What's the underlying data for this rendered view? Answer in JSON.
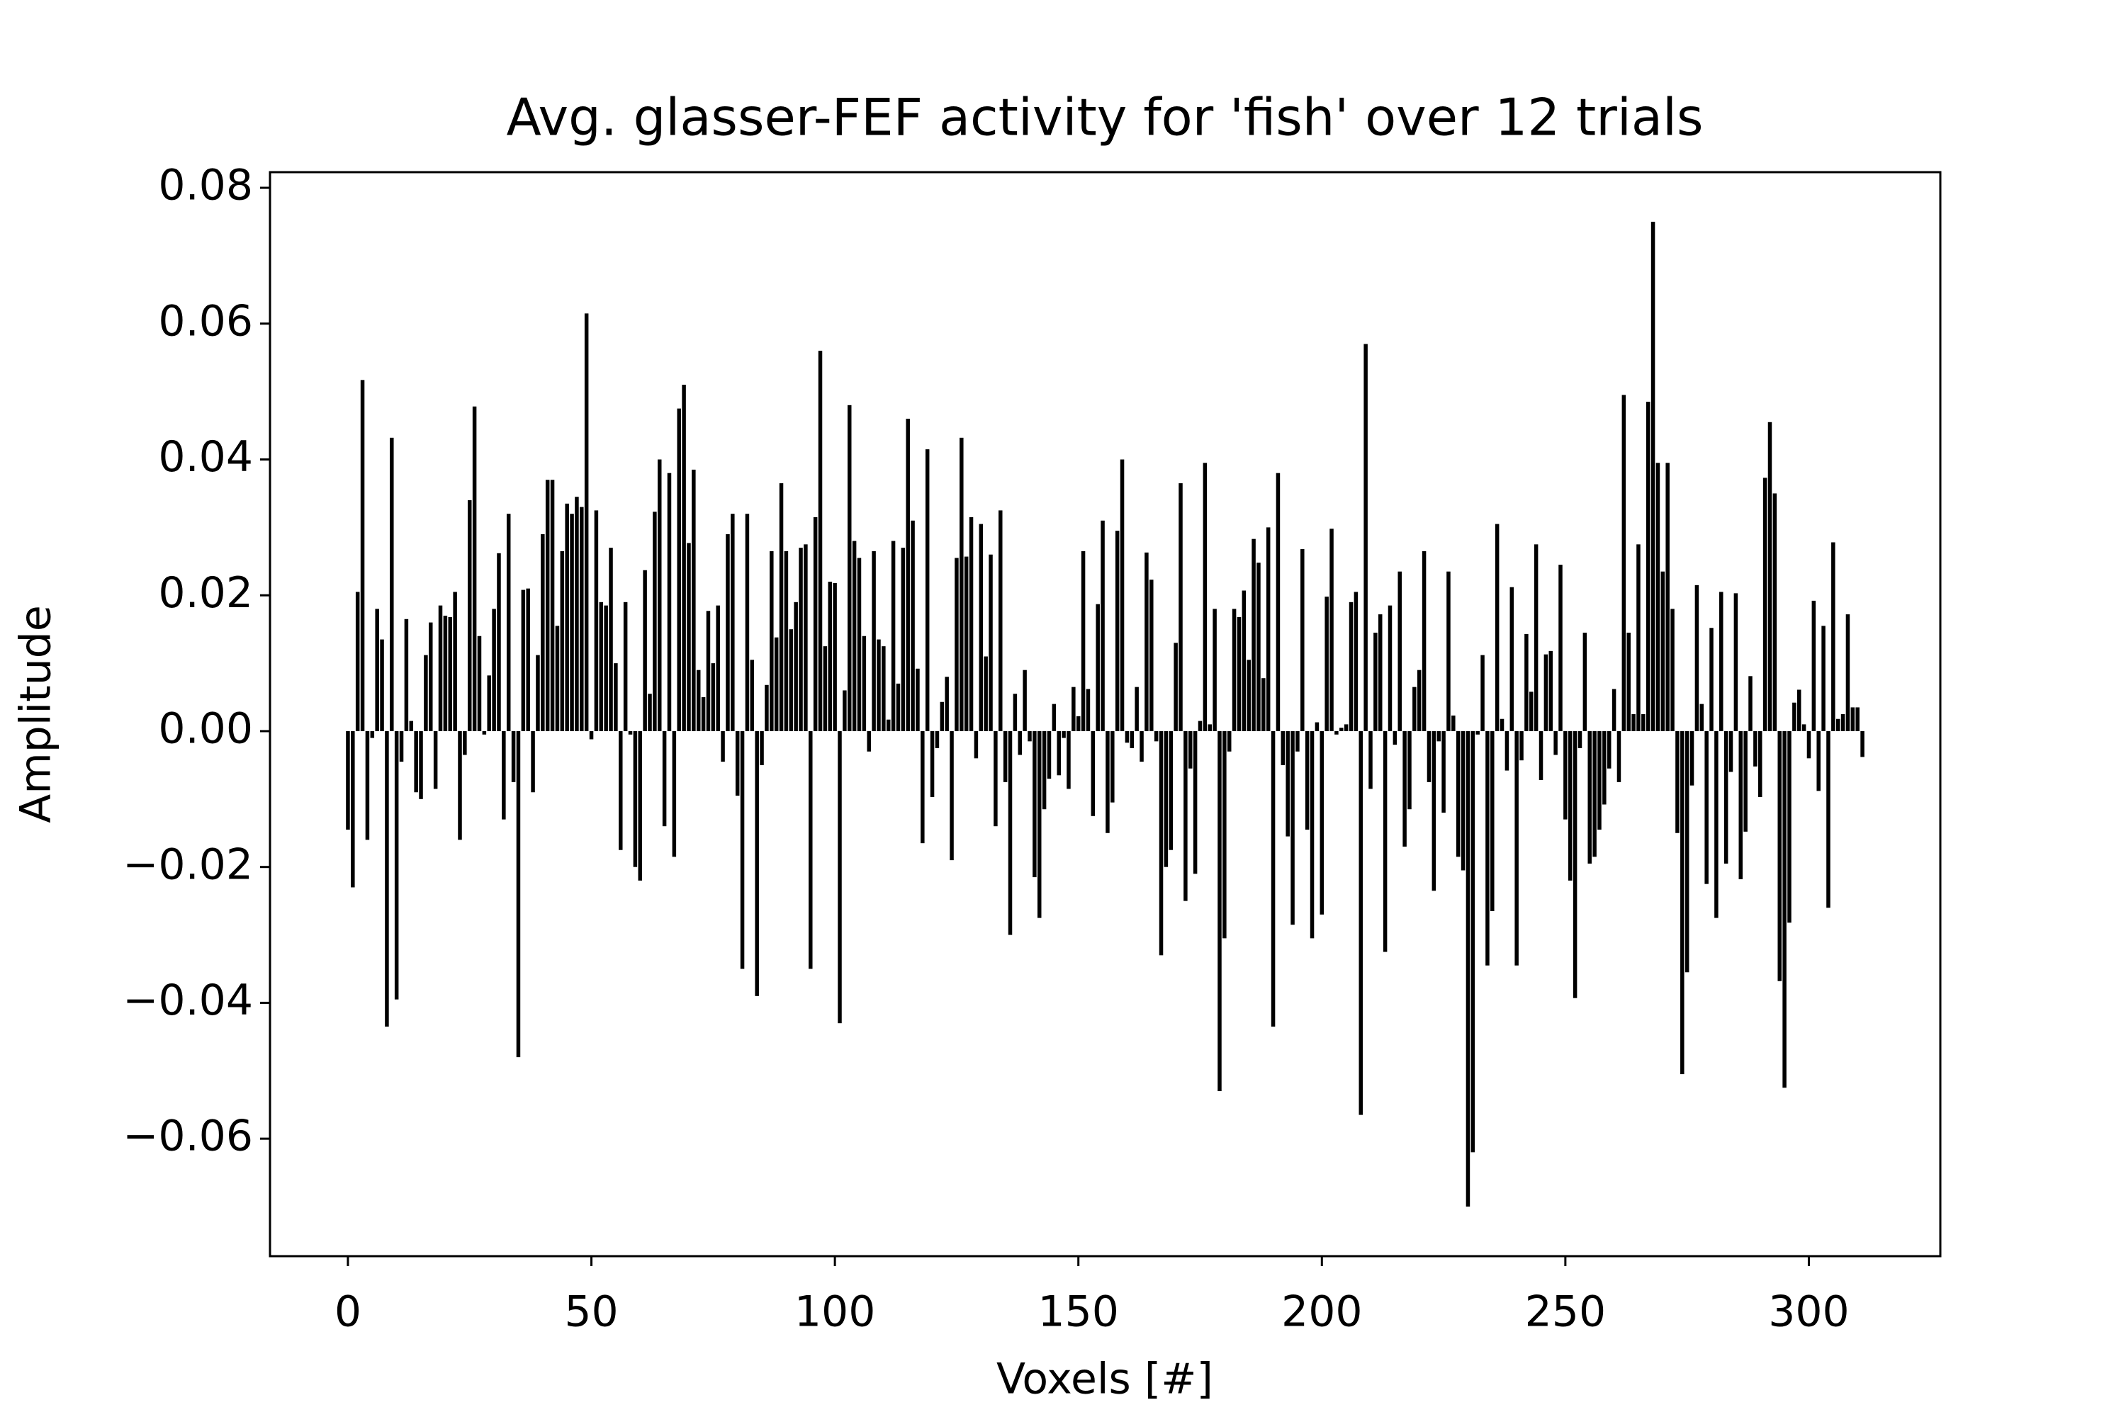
{
  "chart_data": {
    "type": "bar",
    "title": "Avg. glasser-FEF activity for 'fish' over 12 trials",
    "x_label": "Voxels [#]",
    "y_label": "Amplitude",
    "color": "#000000",
    "xlim": [
      -16.0,
      327.0
    ],
    "ylim": [
      -0.0773,
      0.0823
    ],
    "xticks": [
      0,
      50,
      100,
      150,
      200,
      250,
      300
    ],
    "yticks": [
      {
        "value": -0.06,
        "label": "−0.06"
      },
      {
        "value": -0.04,
        "label": "−0.04"
      },
      {
        "value": -0.02,
        "label": "−0.02"
      },
      {
        "value": 0,
        "label": "0.00"
      },
      {
        "value": 0.02,
        "label": "0.02"
      },
      {
        "value": 0.04,
        "label": "0.04"
      },
      {
        "value": 0.06,
        "label": "0.06"
      },
      {
        "value": 0.08,
        "label": "0.08"
      }
    ],
    "x": [
      0,
      1,
      2,
      3,
      4,
      5,
      6,
      7,
      8,
      9,
      10,
      11,
      12,
      13,
      14,
      15,
      16,
      17,
      18,
      19,
      20,
      21,
      22,
      23,
      24,
      25,
      26,
      27,
      28,
      29,
      30,
      31,
      32,
      33,
      34,
      35,
      36,
      37,
      38,
      39,
      40,
      41,
      42,
      43,
      44,
      45,
      46,
      47,
      48,
      49,
      50,
      51,
      52,
      53,
      54,
      55,
      56,
      57,
      58,
      59,
      60,
      61,
      62,
      63,
      64,
      65,
      66,
      67,
      68,
      69,
      70,
      71,
      72,
      73,
      74,
      75,
      76,
      77,
      78,
      79,
      80,
      81,
      82,
      83,
      84,
      85,
      86,
      87,
      88,
      89,
      90,
      91,
      92,
      93,
      94,
      95,
      96,
      97,
      98,
      99,
      100,
      101,
      102,
      103,
      104,
      105,
      106,
      107,
      108,
      109,
      110,
      111,
      112,
      113,
      114,
      115,
      116,
      117,
      118,
      119,
      120,
      121,
      122,
      123,
      124,
      125,
      126,
      127,
      128,
      129,
      130,
      131,
      132,
      133,
      134,
      135,
      136,
      137,
      138,
      139,
      140,
      141,
      142,
      143,
      144,
      145,
      146,
      147,
      148,
      149,
      150,
      151,
      152,
      153,
      154,
      155,
      156,
      157,
      158,
      159,
      160,
      161,
      162,
      163,
      164,
      165,
      166,
      167,
      168,
      169,
      170,
      171,
      172,
      173,
      174,
      175,
      176,
      177,
      178,
      179,
      180,
      181,
      182,
      183,
      184,
      185,
      186,
      187,
      188,
      189,
      190,
      191,
      192,
      193,
      194,
      195,
      196,
      197,
      198,
      199,
      200,
      201,
      202,
      203,
      204,
      205,
      206,
      207,
      208,
      209,
      210,
      211,
      212,
      213,
      214,
      215,
      216,
      217,
      218,
      219,
      220,
      221,
      222,
      223,
      224,
      225,
      226,
      227,
      228,
      229,
      230,
      231,
      232,
      233,
      234,
      235,
      236,
      237,
      238,
      239,
      240,
      241,
      242,
      243,
      244,
      245,
      246,
      247,
      248,
      249,
      250,
      251,
      252,
      253,
      254,
      255,
      256,
      257,
      258,
      259,
      260,
      261,
      262,
      263,
      264,
      265,
      266,
      267,
      268,
      269,
      270,
      271,
      272,
      273,
      274,
      275,
      276,
      277,
      278,
      279,
      280,
      281,
      282,
      283,
      284,
      285,
      286,
      287,
      288,
      289,
      290,
      291,
      292,
      293,
      294,
      295,
      296,
      297,
      298,
      299,
      300,
      301,
      302,
      303,
      304,
      305,
      306,
      307,
      308,
      309,
      310,
      311
    ],
    "values": [
      -0.0145,
      -0.023,
      0.0205,
      0.0517,
      -0.016,
      -0.001,
      0.018,
      0.0135,
      -0.0435,
      0.0432,
      -0.0395,
      -0.0045,
      0.0165,
      0.0015,
      -0.009,
      -0.01,
      0.0112,
      0.016,
      -0.0085,
      0.0185,
      0.017,
      0.0168,
      0.0205,
      -0.016,
      -0.0035,
      0.034,
      0.0478,
      0.014,
      -0.0005,
      0.0082,
      0.018,
      0.0262,
      -0.013,
      0.032,
      -0.0075,
      -0.048,
      0.0208,
      0.021,
      -0.009,
      0.0112,
      0.029,
      0.037,
      0.037,
      0.0155,
      0.0265,
      0.0335,
      0.032,
      0.0345,
      0.033,
      0.0615,
      -0.0012,
      0.0325,
      0.019,
      0.0185,
      0.027,
      0.01,
      -0.0175,
      0.019,
      -0.0005,
      -0.02,
      -0.022,
      0.0237,
      0.0055,
      0.0323,
      0.04,
      -0.014,
      0.038,
      -0.0185,
      0.0475,
      0.051,
      0.0277,
      0.0385,
      0.009,
      0.005,
      0.0177,
      0.01,
      0.0185,
      -0.0045,
      0.029,
      0.032,
      -0.0095,
      -0.035,
      0.032,
      0.0105,
      -0.039,
      -0.005,
      0.0068,
      0.0265,
      0.0138,
      0.0365,
      0.0265,
      0.015,
      0.019,
      0.027,
      0.0275,
      -0.035,
      0.0315,
      0.056,
      0.0125,
      0.022,
      0.0218,
      -0.043,
      0.006,
      0.048,
      0.028,
      0.0255,
      0.014,
      -0.003,
      0.0265,
      0.0135,
      0.0125,
      0.0017,
      0.028,
      0.007,
      0.027,
      0.046,
      0.031,
      0.0092,
      -0.0165,
      0.0415,
      -0.0097,
      -0.0025,
      0.0043,
      0.008,
      -0.019,
      0.0255,
      0.0432,
      0.0257,
      0.0315,
      -0.004,
      0.0305,
      0.011,
      0.026,
      -0.014,
      0.0325,
      -0.0075,
      -0.03,
      0.0055,
      -0.0035,
      0.009,
      -0.0015,
      -0.0215,
      -0.0275,
      -0.0115,
      -0.007,
      0.004,
      -0.0065,
      -0.001,
      -0.0085,
      0.0065,
      0.0022,
      0.0265,
      0.0062,
      -0.0125,
      0.0187,
      0.031,
      -0.015,
      -0.0105,
      0.0295,
      0.04,
      -0.0017,
      -0.0025,
      0.0065,
      -0.0045,
      0.0263,
      0.0223,
      -0.0015,
      -0.033,
      -0.02,
      -0.0175,
      0.013,
      0.0365,
      -0.025,
      -0.0055,
      -0.021,
      0.0015,
      0.0395,
      0.001,
      0.018,
      -0.053,
      -0.0305,
      -0.003,
      0.018,
      0.0168,
      0.0207,
      0.0105,
      0.0283,
      0.0248,
      0.0078,
      0.03,
      -0.0435,
      0.038,
      -0.005,
      -0.0155,
      -0.0285,
      -0.003,
      0.0268,
      -0.0145,
      -0.0305,
      0.0013,
      -0.027,
      0.0198,
      0.0298,
      -0.0005,
      0.0005,
      0.001,
      0.019,
      0.0205,
      -0.0565,
      0.057,
      -0.0085,
      0.0145,
      0.0172,
      -0.0325,
      0.0185,
      -0.002,
      0.0235,
      -0.017,
      -0.0115,
      0.0065,
      0.009,
      0.0265,
      -0.0075,
      -0.0235,
      -0.0015,
      -0.012,
      0.0235,
      0.0023,
      -0.0185,
      -0.0205,
      -0.07,
      -0.062,
      -0.0005,
      0.0112,
      -0.0345,
      -0.0265,
      0.0305,
      0.0018,
      -0.0058,
      0.0212,
      -0.0345,
      -0.0043,
      0.0143,
      0.0058,
      0.0275,
      -0.0072,
      0.0113,
      0.0118,
      -0.0035,
      0.0245,
      -0.013,
      -0.022,
      -0.0393,
      -0.0025,
      0.0145,
      -0.0195,
      -0.0185,
      -0.0145,
      -0.0108,
      -0.0055,
      0.0062,
      -0.0075,
      0.0495,
      0.0145,
      0.0025,
      0.0275,
      0.0025,
      0.0485,
      0.075,
      0.0395,
      0.0235,
      0.0395,
      0.018,
      -0.015,
      -0.0505,
      -0.0355,
      -0.008,
      0.0215,
      0.004,
      -0.0225,
      0.0152,
      -0.0275,
      0.0205,
      -0.0195,
      -0.006,
      0.0203,
      -0.0218,
      -0.0148,
      0.0081,
      -0.0052,
      -0.0097,
      0.0373,
      0.0455,
      0.035,
      -0.0368,
      -0.0525,
      -0.0282,
      0.0042,
      0.0061,
      0.001,
      -0.004,
      0.0192,
      -0.0088,
      0.0155,
      -0.026,
      0.0278,
      0.0018,
      0.0025,
      0.0172,
      0.0035,
      0.0035,
      -0.0038
    ]
  }
}
